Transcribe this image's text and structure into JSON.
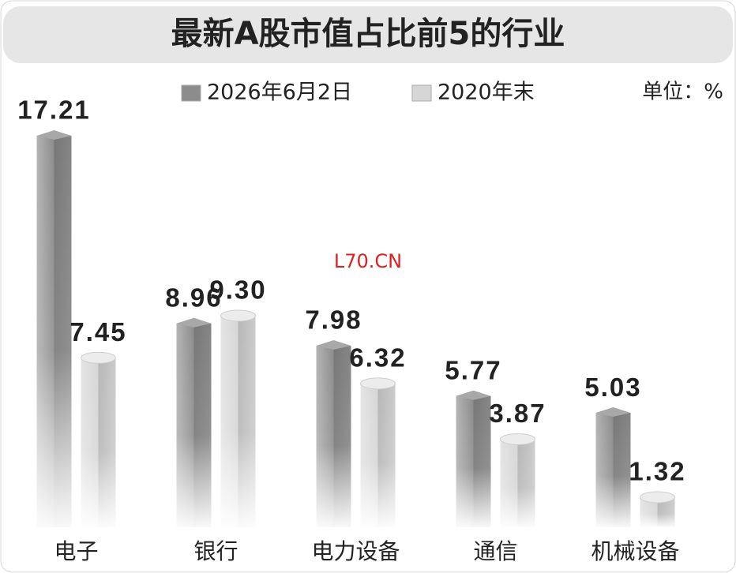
{
  "chart_data": {
    "type": "bar",
    "title": "最新A股市值占比前5的行业",
    "unit_label": "单位：%",
    "annotation": "L70.CN",
    "categories": [
      "电子",
      "银行",
      "电力设备",
      "通信",
      "机械设备"
    ],
    "series": [
      {
        "name": "2026年6月2日",
        "color": "#8c8c8c",
        "values": [
          17.21,
          8.96,
          7.98,
          5.77,
          5.03
        ],
        "value_labels": [
          "17.21",
          "8.96",
          "7.98",
          "5.77",
          "5.03"
        ]
      },
      {
        "name": "2020年末",
        "color": "#d6d6d6",
        "values": [
          7.45,
          9.3,
          6.32,
          3.87,
          1.32
        ],
        "value_labels": [
          "7.45",
          "9.30",
          "6.32",
          "3.87",
          "1.32"
        ]
      }
    ]
  }
}
